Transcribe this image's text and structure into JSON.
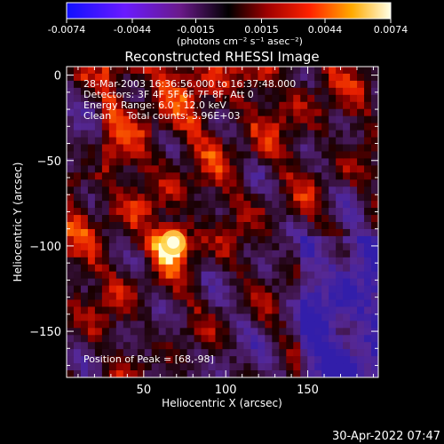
{
  "chart_data": {
    "type": "heatmap",
    "title": "Reconstructed RHESSI Image",
    "xlabel": "Heliocentric X (arcsec)",
    "ylabel": "Heliocentric Y (arcsec)",
    "xlim": [
      3,
      193
    ],
    "ylim": [
      -177,
      5
    ],
    "x_ticks": [
      50,
      100,
      150
    ],
    "y_ticks": [
      0,
      -50,
      -100,
      -150
    ],
    "colorbar": {
      "range": [
        -0.0074,
        0.0074
      ],
      "ticks": [
        -0.0074,
        -0.0044,
        -0.0015,
        0.0015,
        0.0044,
        0.0074
      ],
      "tick_labels": [
        "-0.0074",
        "-0.0044",
        "-0.0015",
        "0.0015",
        "0.0044",
        "0.0074"
      ],
      "unit_label": "(photons cm⁻² s⁻¹ asec⁻²)"
    },
    "annotations": {
      "time_range": "28-Mar-2003 16:36:56.000 to 16:37:48.000",
      "detectors": "Detectors: 3F 4F 5F 6F 7F 8F, Att 0",
      "energy": "Energy Range: 6.0 - 12.0 keV",
      "algorithm": "Clean     Total counts: 3.96E+03",
      "peak": "Position of Peak = [68,-98]"
    },
    "peak": {
      "x": 68,
      "y": -98
    },
    "date_stamp": "30-Apr-2022 07:47"
  }
}
